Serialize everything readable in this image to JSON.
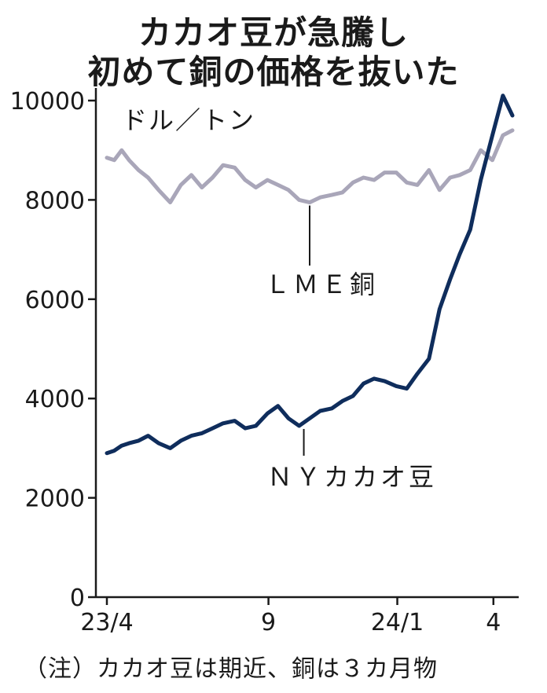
{
  "title_line1": "カカオ豆が急騰し",
  "title_line2": "初めて銅の価格を抜いた",
  "unit_label": "ドル／トン",
  "note": "（注）カカオ豆は期近、銅は３カ月物",
  "colors": {
    "copper": "#a9a6b9",
    "cocoa": "#0f2d5c",
    "axis": "#1a1a1a"
  },
  "chart_data": {
    "type": "line",
    "title": "カカオ豆が急騰し 初めて銅の価格を抜いた",
    "ylabel": "ドル／トン",
    "xlabel": "",
    "ylim": [
      0,
      10000
    ],
    "yticks": [
      0,
      2000,
      4000,
      6000,
      8000,
      10000
    ],
    "xlim": [
      "2023-04-01",
      "2024-04-19"
    ],
    "xticks": [
      {
        "date": "2023-04-01",
        "label": "23/4"
      },
      {
        "date": "2023-09-01",
        "label": "9"
      },
      {
        "date": "2024-01-01",
        "label": "24/1"
      },
      {
        "date": "2024-04-01",
        "label": "4"
      }
    ],
    "grid": false,
    "series": [
      {
        "name": "ＬＭＥ銅",
        "points": [
          [
            "2023-04-01",
            8850
          ],
          [
            "2023-04-08",
            8800
          ],
          [
            "2023-04-15",
            9000
          ],
          [
            "2023-04-22",
            8800
          ],
          [
            "2023-05-01",
            8600
          ],
          [
            "2023-05-10",
            8450
          ],
          [
            "2023-05-20",
            8200
          ],
          [
            "2023-05-31",
            7950
          ],
          [
            "2023-06-10",
            8300
          ],
          [
            "2023-06-20",
            8500
          ],
          [
            "2023-06-30",
            8250
          ],
          [
            "2023-07-10",
            8450
          ],
          [
            "2023-07-20",
            8700
          ],
          [
            "2023-07-31",
            8650
          ],
          [
            "2023-08-10",
            8400
          ],
          [
            "2023-08-20",
            8250
          ],
          [
            "2023-08-31",
            8400
          ],
          [
            "2023-09-10",
            8300
          ],
          [
            "2023-09-20",
            8200
          ],
          [
            "2023-09-30",
            8000
          ],
          [
            "2023-10-10",
            7950
          ],
          [
            "2023-10-20",
            8050
          ],
          [
            "2023-10-31",
            8100
          ],
          [
            "2023-11-10",
            8150
          ],
          [
            "2023-11-20",
            8350
          ],
          [
            "2023-11-30",
            8450
          ],
          [
            "2023-12-10",
            8400
          ],
          [
            "2023-12-20",
            8550
          ],
          [
            "2023-12-31",
            8550
          ],
          [
            "2024-01-10",
            8350
          ],
          [
            "2024-01-20",
            8300
          ],
          [
            "2024-01-31",
            8600
          ],
          [
            "2024-02-10",
            8200
          ],
          [
            "2024-02-20",
            8450
          ],
          [
            "2024-02-29",
            8500
          ],
          [
            "2024-03-10",
            8600
          ],
          [
            "2024-03-20",
            9000
          ],
          [
            "2024-03-31",
            8800
          ],
          [
            "2024-04-10",
            9300
          ],
          [
            "2024-04-19",
            9400
          ]
        ]
      },
      {
        "name": "ＮＹカカオ豆",
        "points": [
          [
            "2023-04-01",
            2900
          ],
          [
            "2023-04-08",
            2950
          ],
          [
            "2023-04-15",
            3050
          ],
          [
            "2023-04-22",
            3100
          ],
          [
            "2023-05-01",
            3150
          ],
          [
            "2023-05-10",
            3250
          ],
          [
            "2023-05-20",
            3100
          ],
          [
            "2023-05-31",
            3000
          ],
          [
            "2023-06-10",
            3150
          ],
          [
            "2023-06-20",
            3250
          ],
          [
            "2023-06-30",
            3300
          ],
          [
            "2023-07-10",
            3400
          ],
          [
            "2023-07-20",
            3500
          ],
          [
            "2023-07-31",
            3550
          ],
          [
            "2023-08-10",
            3400
          ],
          [
            "2023-08-20",
            3450
          ],
          [
            "2023-08-31",
            3700
          ],
          [
            "2023-09-10",
            3850
          ],
          [
            "2023-09-20",
            3600
          ],
          [
            "2023-09-30",
            3450
          ],
          [
            "2023-10-10",
            3600
          ],
          [
            "2023-10-20",
            3750
          ],
          [
            "2023-10-31",
            3800
          ],
          [
            "2023-11-10",
            3950
          ],
          [
            "2023-11-20",
            4050
          ],
          [
            "2023-11-30",
            4300
          ],
          [
            "2023-12-10",
            4400
          ],
          [
            "2023-12-20",
            4350
          ],
          [
            "2023-12-31",
            4250
          ],
          [
            "2024-01-10",
            4200
          ],
          [
            "2024-01-20",
            4500
          ],
          [
            "2024-01-31",
            4800
          ],
          [
            "2024-02-10",
            5800
          ],
          [
            "2024-02-20",
            6400
          ],
          [
            "2024-02-29",
            6900
          ],
          [
            "2024-03-10",
            7400
          ],
          [
            "2024-03-20",
            8400
          ],
          [
            "2024-03-31",
            9300
          ],
          [
            "2024-04-10",
            10100
          ],
          [
            "2024-04-19",
            9700
          ]
        ]
      }
    ]
  }
}
